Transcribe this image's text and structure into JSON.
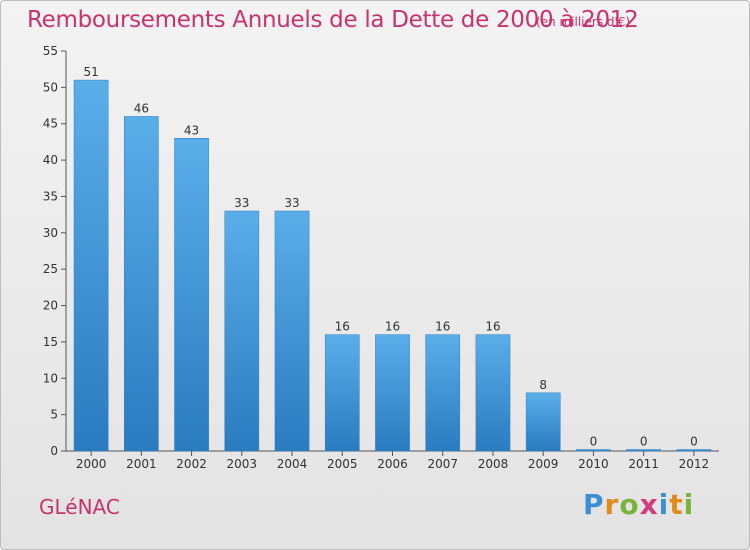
{
  "chart_data": {
    "type": "bar",
    "title": "Remboursements Annuels de la Dette de 2000 à 2012",
    "subtitle": "(en milliers d'€)",
    "categories": [
      "2000",
      "2001",
      "2002",
      "2003",
      "2004",
      "2005",
      "2006",
      "2007",
      "2008",
      "2009",
      "2010",
      "2011",
      "2012"
    ],
    "values": [
      51,
      46,
      43,
      33,
      33,
      16,
      16,
      16,
      16,
      8,
      0,
      0,
      0
    ],
    "ylim": [
      0,
      55
    ],
    "yticks": [
      0,
      5,
      10,
      15,
      20,
      25,
      30,
      35,
      40,
      45,
      50,
      55
    ],
    "xlabel": "",
    "ylabel": "",
    "grid": false,
    "bar_color": "#3a8fd6"
  },
  "commune": "GLéNAC",
  "logo": {
    "letters": [
      "P",
      "r",
      "o",
      "x",
      "i",
      "t",
      "i"
    ],
    "colors": [
      "#3b8fd4",
      "#e38a1c",
      "#7ab33a",
      "#d43b7a",
      "#3b8fd4",
      "#e38a1c",
      "#7ab33a"
    ]
  },
  "colors": {
    "accent": "#c8326e"
  }
}
